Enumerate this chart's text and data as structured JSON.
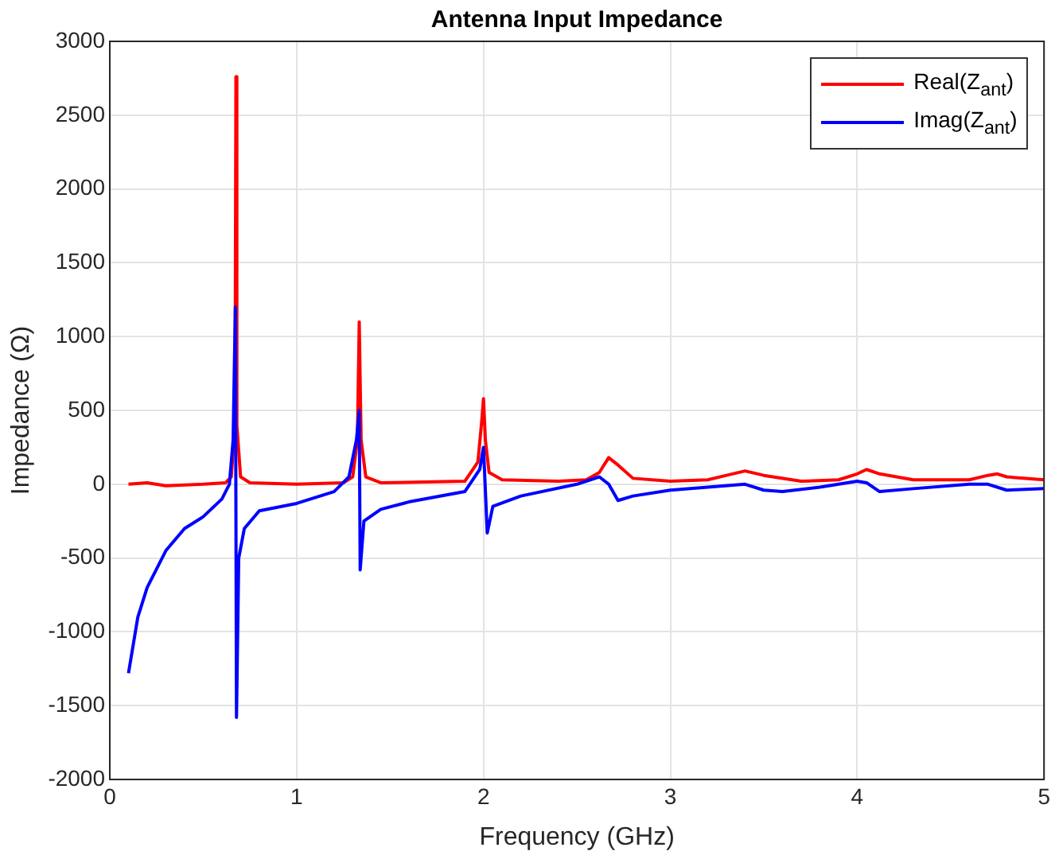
{
  "chart_data": {
    "type": "line",
    "title": "Antenna Input Impedance",
    "xlabel": "Frequency (GHz)",
    "ylabel": "Impedance (Ω)",
    "xlim": [
      0,
      5
    ],
    "xticks": [
      0,
      1,
      2,
      3,
      4,
      5
    ],
    "ylim": [
      -2000,
      3000
    ],
    "yticks": [
      -2000,
      -1500,
      -1000,
      -500,
      0,
      500,
      1000,
      1500,
      2000,
      2500,
      3000
    ],
    "grid": true,
    "legend": "top right",
    "marker": "none",
    "line_style": "solid",
    "series": [
      {
        "name": "Real(Z$_{ant}$)",
        "color": "#ff0000",
        "x": [
          0.1,
          0.2,
          0.3,
          0.5,
          0.62,
          0.65,
          0.67,
          0.675,
          0.68,
          0.7,
          0.75,
          1.0,
          1.25,
          1.3,
          1.325,
          1.335,
          1.345,
          1.37,
          1.45,
          1.9,
          1.97,
          1.99,
          2.0,
          2.01,
          2.03,
          2.1,
          2.4,
          2.55,
          2.62,
          2.67,
          2.72,
          2.8,
          3.0,
          3.2,
          3.3,
          3.4,
          3.5,
          3.7,
          3.9,
          4.0,
          4.05,
          4.12,
          4.3,
          4.6,
          4.7,
          4.75,
          4.8,
          5.0
        ],
        "values": [
          0,
          10,
          -10,
          0,
          10,
          50,
          400,
          2760,
          400,
          50,
          10,
          0,
          10,
          50,
          300,
          1100,
          300,
          50,
          10,
          20,
          150,
          420,
          580,
          300,
          80,
          30,
          20,
          30,
          80,
          180,
          130,
          40,
          20,
          30,
          60,
          90,
          60,
          20,
          30,
          70,
          100,
          70,
          30,
          30,
          60,
          70,
          50,
          30
        ]
      },
      {
        "name": "Imag(Z$_{ant}$)",
        "color": "#0000ff",
        "x": [
          0.1,
          0.15,
          0.2,
          0.3,
          0.4,
          0.5,
          0.6,
          0.64,
          0.66,
          0.672,
          0.678,
          0.69,
          0.72,
          0.8,
          1.0,
          1.2,
          1.28,
          1.32,
          1.335,
          1.34,
          1.36,
          1.45,
          1.6,
          1.9,
          1.98,
          2.0,
          2.02,
          2.05,
          2.2,
          2.5,
          2.62,
          2.67,
          2.72,
          2.8,
          3.0,
          3.4,
          3.5,
          3.6,
          3.8,
          4.0,
          4.05,
          4.12,
          4.3,
          4.6,
          4.7,
          4.8,
          5.0
        ],
        "values": [
          -1280,
          -900,
          -700,
          -450,
          -300,
          -220,
          -100,
          0,
          300,
          1200,
          -1580,
          -500,
          -300,
          -180,
          -130,
          -50,
          50,
          300,
          500,
          -580,
          -250,
          -170,
          -120,
          -50,
          100,
          250,
          -330,
          -150,
          -80,
          0,
          50,
          0,
          -110,
          -80,
          -40,
          0,
          -40,
          -50,
          -20,
          20,
          10,
          -50,
          -30,
          0,
          0,
          -40,
          -30
        ]
      }
    ]
  }
}
